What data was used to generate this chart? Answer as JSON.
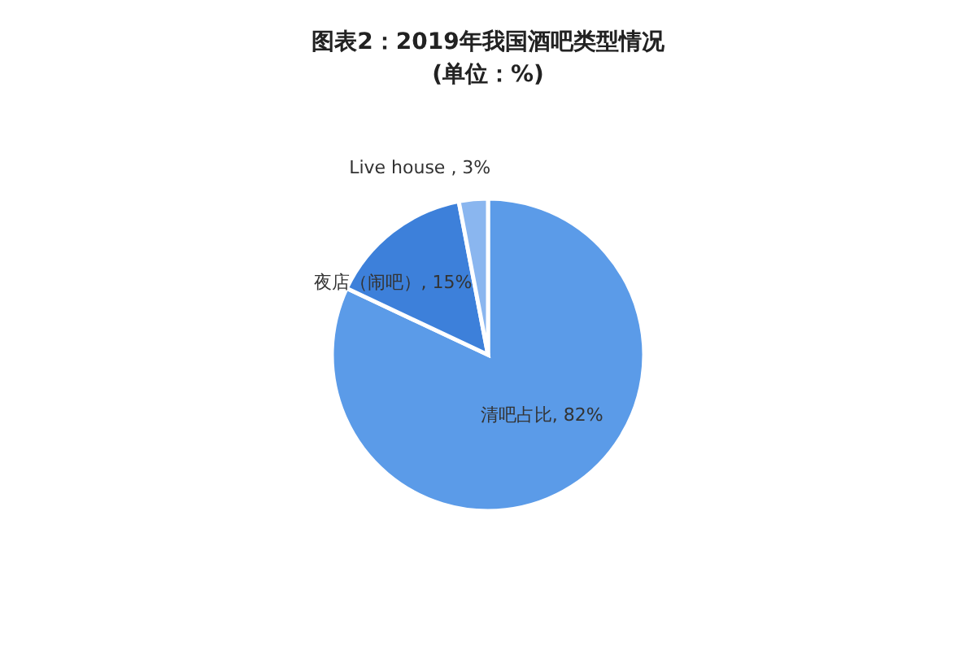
{
  "chart_data": {
    "type": "pie",
    "title": "图表2：2019年我国酒吧类型情况",
    "subtitle": "(单位：%)",
    "categories": [
      "清吧占比",
      "夜店（闹吧）",
      "Live house"
    ],
    "values": [
      82,
      15,
      3
    ],
    "value_labels": [
      "82%",
      "15%",
      "3%"
    ],
    "colors": [
      "#5b9be8",
      "#3d80da",
      "#8ab6ef"
    ]
  }
}
